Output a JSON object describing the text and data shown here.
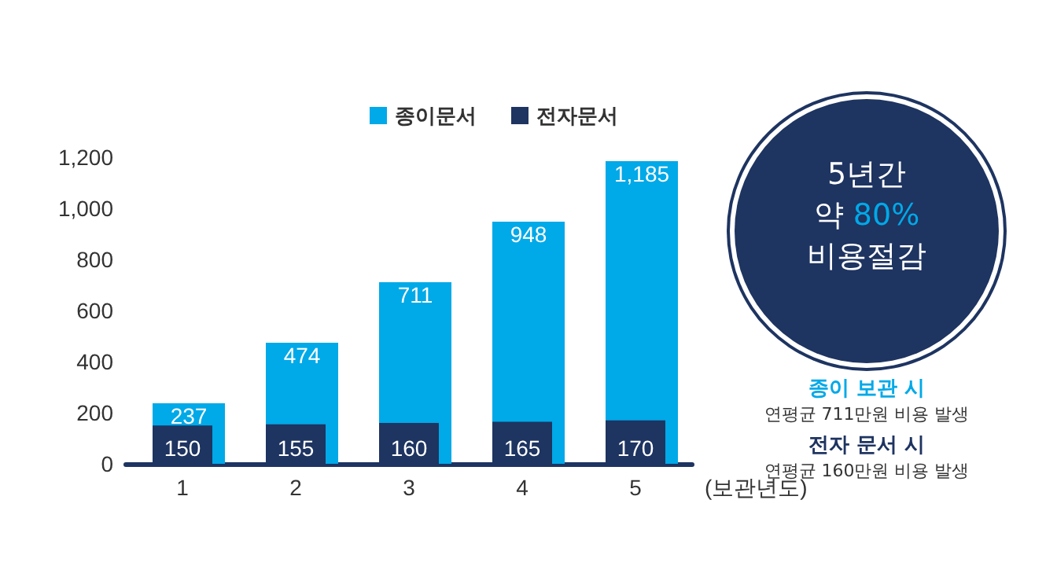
{
  "chart_data": {
    "type": "bar",
    "categories": [
      "1",
      "2",
      "3",
      "4",
      "5"
    ],
    "xlabel": "(보관년도)",
    "series": [
      {
        "name": "종이문서",
        "color": "#00a9e8",
        "values": [
          237,
          474,
          711,
          948,
          1185
        ],
        "value_labels": [
          "237",
          "474",
          "711",
          "948",
          "1,185"
        ]
      },
      {
        "name": "전자문서",
        "color": "#1e3461",
        "values": [
          150,
          155,
          160,
          165,
          170
        ]
      }
    ],
    "ylim": [
      0,
      1200
    ],
    "yticks": [
      0,
      200,
      400,
      600,
      800,
      {
        "value": 1000,
        "label": "1,000"
      },
      {
        "value": 1200,
        "label": "1,200"
      }
    ],
    "grid": false,
    "legend": "top",
    "data_labels": true,
    "annotations": [
      "5년간",
      "약 80%",
      "비용절감",
      "종이 보관 시",
      "연평균 711만원 비용 발생",
      "전자 문서 시",
      "연평균 160만원 비용 발생"
    ]
  }
}
